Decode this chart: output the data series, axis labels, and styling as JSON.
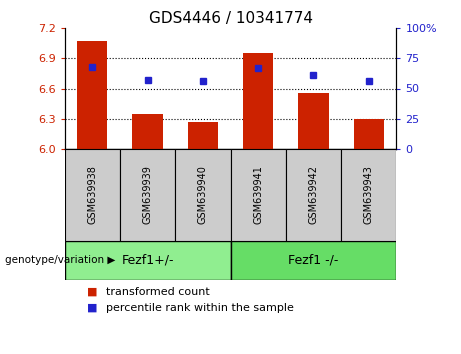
{
  "title": "GDS4446 / 10341774",
  "samples": [
    "GSM639938",
    "GSM639939",
    "GSM639940",
    "GSM639941",
    "GSM639942",
    "GSM639943"
  ],
  "bar_values": [
    7.07,
    6.35,
    6.27,
    6.95,
    6.56,
    6.3
  ],
  "blue_values": [
    68,
    57,
    56,
    67,
    61,
    56
  ],
  "bar_color": "#cc2200",
  "blue_color": "#2222cc",
  "ylim_left": [
    6.0,
    7.2
  ],
  "ylim_right": [
    0,
    100
  ],
  "yticks_left": [
    6.0,
    6.3,
    6.6,
    6.9,
    7.2
  ],
  "yticks_right": [
    0,
    25,
    50,
    75,
    100
  ],
  "grid_lines": [
    6.3,
    6.6,
    6.9
  ],
  "groups": [
    {
      "label": "Fezf1+/-",
      "color": "#90ee90"
    },
    {
      "label": "Fezf1 -/-",
      "color": "#66dd66"
    }
  ],
  "legend_items": [
    {
      "label": "transformed count",
      "color": "#cc2200"
    },
    {
      "label": "percentile rank within the sample",
      "color": "#2222cc"
    }
  ],
  "group_label": "genotype/variation",
  "bar_width": 0.55,
  "sample_box_color": "#cccccc",
  "plot_bg": "#ffffff",
  "fig_bg": "#ffffff"
}
